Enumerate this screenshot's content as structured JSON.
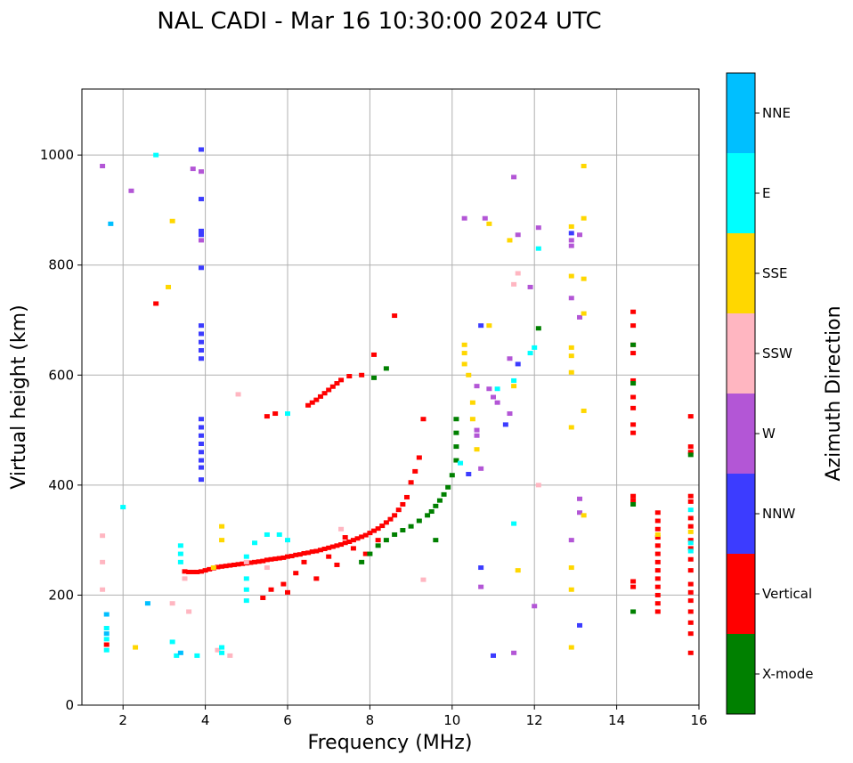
{
  "chart_data": {
    "type": "scatter",
    "title": "NAL CADI - Mar 16 10:30:00 2024 UTC",
    "xlabel": "Frequency (MHz)",
    "ylabel": "Virtual height (km)",
    "xlim": [
      1,
      16
    ],
    "ylim": [
      0,
      1120
    ],
    "xticks": [
      2,
      4,
      6,
      8,
      10,
      12,
      14,
      16
    ],
    "yticks": [
      0,
      200,
      400,
      600,
      800,
      1000
    ],
    "grid": true,
    "colorbar": {
      "title": "Azimuth Direction",
      "categories": [
        {
          "label": "X-mode",
          "color": "#008000"
        },
        {
          "label": "Vertical",
          "color": "#ff0000"
        },
        {
          "label": "NNW",
          "color": "#3c3cff"
        },
        {
          "label": "W",
          "color": "#b356d6"
        },
        {
          "label": "SSW",
          "color": "#ffb6c1"
        },
        {
          "label": "SSE",
          "color": "#ffd700"
        },
        {
          "label": "E",
          "color": "#00ffff"
        },
        {
          "label": "NNE",
          "color": "#00bfff"
        }
      ]
    },
    "series": [
      {
        "name": "Vertical",
        "color": "#ff0000",
        "points": [
          [
            3.5,
            243
          ],
          [
            3.6,
            242
          ],
          [
            3.7,
            242
          ],
          [
            3.8,
            242
          ],
          [
            3.9,
            243
          ],
          [
            4.0,
            245
          ],
          [
            4.1,
            247
          ],
          [
            4.2,
            249
          ],
          [
            4.3,
            251
          ],
          [
            4.4,
            252
          ],
          [
            4.5,
            253
          ],
          [
            4.6,
            254
          ],
          [
            4.7,
            255
          ],
          [
            4.8,
            256
          ],
          [
            4.9,
            257
          ],
          [
            5.0,
            258
          ],
          [
            5.1,
            259
          ],
          [
            5.2,
            260
          ],
          [
            5.3,
            261
          ],
          [
            5.4,
            262
          ],
          [
            5.5,
            264
          ],
          [
            5.6,
            265
          ],
          [
            5.7,
            266
          ],
          [
            5.8,
            267
          ],
          [
            5.9,
            268
          ],
          [
            6.0,
            270
          ],
          [
            6.1,
            271
          ],
          [
            6.2,
            273
          ],
          [
            6.3,
            274
          ],
          [
            6.4,
            276
          ],
          [
            6.5,
            277
          ],
          [
            6.6,
            279
          ],
          [
            6.7,
            280
          ],
          [
            6.8,
            282
          ],
          [
            6.9,
            284
          ],
          [
            7.0,
            286
          ],
          [
            7.1,
            288
          ],
          [
            7.2,
            290
          ],
          [
            7.3,
            292
          ],
          [
            7.4,
            295
          ],
          [
            7.5,
            297
          ],
          [
            7.6,
            300
          ],
          [
            7.7,
            303
          ],
          [
            7.8,
            306
          ],
          [
            7.9,
            309
          ],
          [
            8.0,
            313
          ],
          [
            8.1,
            317
          ],
          [
            8.2,
            321
          ],
          [
            8.3,
            326
          ],
          [
            8.4,
            332
          ],
          [
            8.5,
            338
          ],
          [
            8.6,
            345
          ],
          [
            8.7,
            355
          ],
          [
            8.8,
            365
          ],
          [
            8.9,
            378
          ],
          [
            9.0,
            405
          ],
          [
            9.1,
            425
          ],
          [
            9.2,
            450
          ],
          [
            6.5,
            545
          ],
          [
            6.6,
            550
          ],
          [
            6.7,
            555
          ],
          [
            6.8,
            561
          ],
          [
            6.9,
            567
          ],
          [
            7.0,
            573
          ],
          [
            7.1,
            579
          ],
          [
            7.2,
            585
          ],
          [
            7.3,
            591
          ],
          [
            7.5,
            598
          ],
          [
            7.8,
            600
          ],
          [
            5.5,
            525
          ],
          [
            5.7,
            530
          ],
          [
            9.3,
            520
          ],
          [
            8.6,
            708
          ],
          [
            8.1,
            637
          ],
          [
            7.4,
            305
          ],
          [
            7.6,
            285
          ],
          [
            7.9,
            275
          ],
          [
            8.2,
            300
          ],
          [
            7.0,
            270
          ],
          [
            6.4,
            260
          ],
          [
            6.2,
            240
          ],
          [
            5.9,
            220
          ],
          [
            5.6,
            210
          ],
          [
            5.4,
            195
          ],
          [
            6.0,
            205
          ],
          [
            6.7,
            230
          ],
          [
            7.2,
            255
          ],
          [
            14.4,
            380
          ],
          [
            14.4,
            372
          ],
          [
            14.4,
            560
          ],
          [
            14.4,
            540
          ],
          [
            14.4,
            510
          ],
          [
            14.4,
            495
          ],
          [
            14.4,
            590
          ],
          [
            14.4,
            640
          ],
          [
            14.4,
            655
          ],
          [
            14.4,
            690
          ],
          [
            14.4,
            715
          ],
          [
            14.4,
            225
          ],
          [
            14.4,
            215
          ],
          [
            15.0,
            350
          ],
          [
            15.0,
            335
          ],
          [
            15.0,
            320
          ],
          [
            15.0,
            305
          ],
          [
            15.0,
            290
          ],
          [
            15.0,
            275
          ],
          [
            15.0,
            260
          ],
          [
            15.0,
            245
          ],
          [
            15.0,
            230
          ],
          [
            15.0,
            215
          ],
          [
            15.0,
            200
          ],
          [
            15.0,
            185
          ],
          [
            15.0,
            170
          ],
          [
            15.8,
            525
          ],
          [
            15.8,
            470
          ],
          [
            15.8,
            460
          ],
          [
            15.8,
            380
          ],
          [
            15.8,
            370
          ],
          [
            15.8,
            340
          ],
          [
            15.8,
            325
          ],
          [
            15.8,
            300
          ],
          [
            15.8,
            285
          ],
          [
            15.8,
            265
          ],
          [
            15.8,
            245
          ],
          [
            15.8,
            220
          ],
          [
            15.8,
            205
          ],
          [
            15.8,
            190
          ],
          [
            15.8,
            170
          ],
          [
            15.8,
            150
          ],
          [
            15.8,
            130
          ],
          [
            15.8,
            95
          ],
          [
            2.8,
            730
          ],
          [
            1.6,
            110
          ]
        ]
      },
      {
        "name": "X-mode",
        "color": "#008000",
        "points": [
          [
            7.8,
            260
          ],
          [
            8.0,
            275
          ],
          [
            8.2,
            290
          ],
          [
            8.4,
            300
          ],
          [
            8.6,
            310
          ],
          [
            8.8,
            318
          ],
          [
            9.0,
            325
          ],
          [
            9.2,
            335
          ],
          [
            9.4,
            345
          ],
          [
            9.5,
            352
          ],
          [
            9.6,
            362
          ],
          [
            9.7,
            372
          ],
          [
            9.8,
            383
          ],
          [
            9.9,
            396
          ],
          [
            10.0,
            418
          ],
          [
            10.1,
            445
          ],
          [
            10.1,
            470
          ],
          [
            10.1,
            495
          ],
          [
            10.1,
            520
          ],
          [
            8.4,
            612
          ],
          [
            8.1,
            595
          ],
          [
            9.6,
            300
          ],
          [
            14.4,
            170
          ],
          [
            14.4,
            365
          ],
          [
            14.4,
            585
          ],
          [
            14.4,
            655
          ],
          [
            12.1,
            685
          ],
          [
            15.8,
            455
          ]
        ]
      },
      {
        "name": "NNW",
        "color": "#3c3cff",
        "points": [
          [
            3.9,
            1010
          ],
          [
            3.9,
            920
          ],
          [
            3.9,
            862
          ],
          [
            3.9,
            855
          ],
          [
            3.9,
            795
          ],
          [
            3.9,
            690
          ],
          [
            3.9,
            675
          ],
          [
            3.9,
            660
          ],
          [
            3.9,
            645
          ],
          [
            3.9,
            630
          ],
          [
            3.9,
            520
          ],
          [
            3.9,
            505
          ],
          [
            3.9,
            490
          ],
          [
            3.9,
            475
          ],
          [
            3.9,
            460
          ],
          [
            3.9,
            445
          ],
          [
            3.9,
            432
          ],
          [
            3.9,
            410
          ],
          [
            10.4,
            420
          ],
          [
            10.7,
            690
          ],
          [
            10.7,
            250
          ],
          [
            11.0,
            90
          ],
          [
            13.1,
            145
          ],
          [
            12.9,
            858
          ],
          [
            11.3,
            510
          ],
          [
            11.6,
            620
          ]
        ]
      },
      {
        "name": "W",
        "color": "#b356d6",
        "points": [
          [
            1.5,
            980
          ],
          [
            2.2,
            935
          ],
          [
            3.7,
            975
          ],
          [
            3.9,
            970
          ],
          [
            3.9,
            845
          ],
          [
            10.3,
            885
          ],
          [
            10.8,
            885
          ],
          [
            11.5,
            960
          ],
          [
            11.6,
            855
          ],
          [
            11.9,
            760
          ],
          [
            12.1,
            868
          ],
          [
            12.9,
            845
          ],
          [
            12.9,
            835
          ],
          [
            13.1,
            855
          ],
          [
            12.9,
            740
          ],
          [
            13.1,
            705
          ],
          [
            11.4,
            630
          ],
          [
            11.1,
            550
          ],
          [
            11.0,
            560
          ],
          [
            10.9,
            575
          ],
          [
            10.6,
            580
          ],
          [
            10.6,
            500
          ],
          [
            10.6,
            490
          ],
          [
            10.7,
            430
          ],
          [
            13.1,
            375
          ],
          [
            13.1,
            350
          ],
          [
            12.9,
            300
          ],
          [
            12.0,
            180
          ],
          [
            11.5,
            95
          ],
          [
            10.7,
            215
          ],
          [
            11.4,
            530
          ]
        ]
      },
      {
        "name": "SSW",
        "color": "#ffb6c1",
        "points": [
          [
            1.5,
            308
          ],
          [
            1.5,
            260
          ],
          [
            1.5,
            210
          ],
          [
            3.2,
            185
          ],
          [
            3.6,
            170
          ],
          [
            4.3,
            100
          ],
          [
            4.6,
            90
          ],
          [
            5.0,
            260
          ],
          [
            5.5,
            250
          ],
          [
            7.3,
            320
          ],
          [
            4.8,
            565
          ],
          [
            11.5,
            765
          ],
          [
            11.6,
            785
          ],
          [
            12.1,
            400
          ],
          [
            9.3,
            228
          ],
          [
            3.5,
            230
          ]
        ]
      },
      {
        "name": "SSE",
        "color": "#ffd700",
        "points": [
          [
            3.2,
            880
          ],
          [
            3.1,
            760
          ],
          [
            4.4,
            325
          ],
          [
            4.4,
            300
          ],
          [
            4.2,
            250
          ],
          [
            2.3,
            105
          ],
          [
            10.3,
            655
          ],
          [
            10.3,
            640
          ],
          [
            10.3,
            620
          ],
          [
            10.4,
            600
          ],
          [
            10.5,
            550
          ],
          [
            10.5,
            520
          ],
          [
            10.6,
            465
          ],
          [
            10.9,
            690
          ],
          [
            10.9,
            875
          ],
          [
            11.4,
            845
          ],
          [
            11.5,
            580
          ],
          [
            12.9,
            870
          ],
          [
            12.9,
            780
          ],
          [
            12.9,
            650
          ],
          [
            12.9,
            635
          ],
          [
            12.9,
            605
          ],
          [
            12.9,
            505
          ],
          [
            13.2,
            980
          ],
          [
            13.2,
            885
          ],
          [
            13.2,
            775
          ],
          [
            13.2,
            712
          ],
          [
            13.2,
            535
          ],
          [
            13.2,
            345
          ],
          [
            12.9,
            250
          ],
          [
            12.9,
            210
          ],
          [
            12.9,
            105
          ],
          [
            11.6,
            245
          ],
          [
            15.0,
            310
          ],
          [
            15.8,
            315
          ]
        ]
      },
      {
        "name": "E",
        "color": "#00ffff",
        "points": [
          [
            1.6,
            140
          ],
          [
            1.6,
            120
          ],
          [
            1.6,
            100
          ],
          [
            2.0,
            360
          ],
          [
            3.4,
            290
          ],
          [
            3.4,
            275
          ],
          [
            3.4,
            260
          ],
          [
            3.2,
            115
          ],
          [
            3.3,
            90
          ],
          [
            4.4,
            105
          ],
          [
            4.4,
            95
          ],
          [
            5.0,
            270
          ],
          [
            5.0,
            230
          ],
          [
            5.0,
            210
          ],
          [
            5.0,
            190
          ],
          [
            5.5,
            310
          ],
          [
            5.8,
            310
          ],
          [
            6.0,
            300
          ],
          [
            6.0,
            530
          ],
          [
            5.2,
            295
          ],
          [
            10.2,
            440
          ],
          [
            11.1,
            575
          ],
          [
            11.5,
            590
          ],
          [
            11.5,
            330
          ],
          [
            11.9,
            640
          ],
          [
            12.0,
            650
          ],
          [
            12.1,
            830
          ],
          [
            15.8,
            355
          ],
          [
            15.8,
            295
          ],
          [
            15.8,
            280
          ],
          [
            2.8,
            1000
          ],
          [
            3.8,
            90
          ]
        ]
      },
      {
        "name": "NNE",
        "color": "#00bfff",
        "points": [
          [
            1.6,
            165
          ],
          [
            1.6,
            130
          ],
          [
            2.6,
            185
          ],
          [
            3.4,
            95
          ],
          [
            1.7,
            875
          ]
        ]
      }
    ]
  }
}
